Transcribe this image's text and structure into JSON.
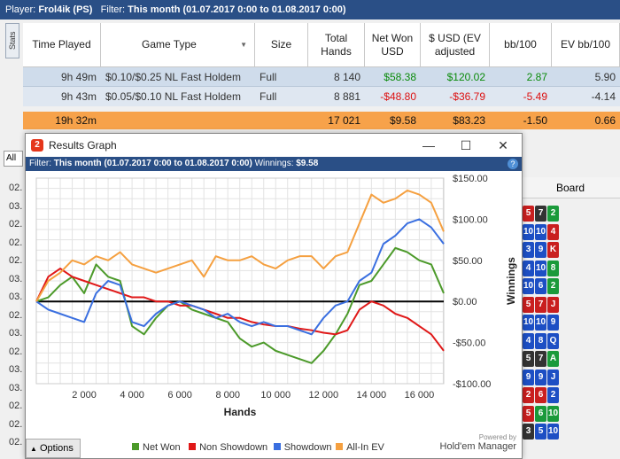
{
  "topbar": {
    "player_label": "Player:",
    "player": "Frol4ik (PS)",
    "filter_label": "Filter:",
    "filter": "This month (01.07.2017 0:00 to 01.08.2017 0:00)"
  },
  "stats_tab": "Stats",
  "table": {
    "headers": [
      "Time Played",
      "Game Type",
      "Size",
      "Total Hands",
      "Net Won USD",
      "$ USD (EV adjusted",
      "bb/100",
      "EV bb/100"
    ],
    "rows": [
      {
        "time": "9h 49m",
        "game": "$0.10/$0.25 NL Fast Holdem",
        "size": "Full",
        "hands": "8 140",
        "net": "$58.38",
        "ev": "$120.02",
        "bb": "2.87",
        "evbb": "5.90"
      },
      {
        "time": "9h 43m",
        "game": "$0.05/$0.10 NL Fast Holdem",
        "size": "Full",
        "hands": "8 881",
        "net": "-$48.80",
        "ev": "-$36.79",
        "bb": "-5.49",
        "evbb": "-4.14"
      }
    ],
    "total": {
      "time": "19h 32m",
      "hands": "17 021",
      "net": "$9.58",
      "ev": "$83.23",
      "bb": "-1.50",
      "evbb": "0.66"
    }
  },
  "all_label": "All",
  "board_header": "Board",
  "dates": [
    "02.",
    "03.",
    "02.",
    "02.",
    "02.",
    "03.",
    "03.",
    "02.",
    "03.",
    "02.",
    "03.",
    "03.",
    "02.",
    "02.",
    "02."
  ],
  "boards": [
    [
      [
        "5",
        "h"
      ],
      [
        "7",
        "s"
      ],
      [
        "2",
        "cl"
      ]
    ],
    [
      [
        "10",
        "d"
      ],
      [
        "10",
        "d"
      ],
      [
        "4",
        "h"
      ]
    ],
    [
      [
        "3",
        "d"
      ],
      [
        "9",
        "d"
      ],
      [
        "K",
        "h"
      ]
    ],
    [
      [
        "4",
        "d"
      ],
      [
        "10",
        "d"
      ],
      [
        "8",
        "cl"
      ]
    ],
    [
      [
        "10",
        "d"
      ],
      [
        "6",
        "d"
      ],
      [
        "2",
        "cl"
      ]
    ],
    [
      [
        "5",
        "h"
      ],
      [
        "7",
        "h"
      ],
      [
        "J",
        "h"
      ]
    ],
    [
      [
        "10",
        "d"
      ],
      [
        "10",
        "d"
      ],
      [
        "9",
        "d"
      ]
    ],
    [
      [
        "4",
        "d"
      ],
      [
        "8",
        "d"
      ],
      [
        "Q",
        "d"
      ]
    ],
    [
      [
        "5",
        "s"
      ],
      [
        "7",
        "s"
      ],
      [
        "A",
        "cl"
      ]
    ],
    [
      [
        "9",
        "d"
      ],
      [
        "9",
        "d"
      ],
      [
        "J",
        "d"
      ]
    ],
    [
      [
        "2",
        "h"
      ],
      [
        "6",
        "h"
      ],
      [
        "2",
        "d"
      ]
    ],
    [
      [
        "5",
        "h"
      ],
      [
        "6",
        "cl"
      ],
      [
        "10",
        "cl"
      ]
    ],
    [
      [
        "3",
        "s"
      ],
      [
        "5",
        "d"
      ],
      [
        "10",
        "d"
      ]
    ]
  ],
  "dialog": {
    "title": "Results Graph",
    "filter_label": "Filter:",
    "filter": "This month (01.07.2017 0:00 to 01.08.2017 0:00)",
    "winnings_label": "Winnings:",
    "winnings": "$9.58",
    "options": "Options",
    "brand_small": "Powered by",
    "brand": "Hold'em Manager"
  },
  "chart_data": {
    "type": "line",
    "xlabel": "Hands",
    "ylabel": "Winnings",
    "xlim": [
      0,
      17021
    ],
    "ylim": [
      -100,
      150
    ],
    "xticks": [
      2000,
      4000,
      6000,
      8000,
      10000,
      12000,
      14000,
      16000
    ],
    "xtick_labels": [
      "2 000",
      "4 000",
      "6 000",
      "8 000",
      "10 000",
      "12 000",
      "14 000",
      "16 000"
    ],
    "yticks": [
      -100,
      -50,
      0,
      50,
      100,
      150
    ],
    "ytick_labels": [
      "-$100.00",
      "-$50.00",
      "$0.00",
      "$50.00",
      "$100.00",
      "$150.00"
    ],
    "grid": true,
    "legend_position": "bottom",
    "x": [
      0,
      500,
      1000,
      1500,
      2000,
      2500,
      3000,
      3500,
      4000,
      4500,
      5000,
      5500,
      6000,
      6500,
      7000,
      7500,
      8000,
      8500,
      9000,
      9500,
      10000,
      10500,
      11000,
      11500,
      12000,
      12500,
      13000,
      13500,
      14000,
      14500,
      15000,
      15500,
      16000,
      16500,
      17021
    ],
    "series": [
      {
        "name": "Net Won",
        "color": "#4c9a2a",
        "values": [
          0,
          5,
          20,
          30,
          10,
          45,
          30,
          25,
          -30,
          -40,
          -20,
          -5,
          0,
          -10,
          -15,
          -20,
          -25,
          -45,
          -55,
          -50,
          -60,
          -65,
          -70,
          -75,
          -60,
          -40,
          -15,
          20,
          25,
          45,
          65,
          60,
          50,
          45,
          10
        ]
      },
      {
        "name": "Non Showdown",
        "color": "#e01818",
        "values": [
          0,
          30,
          40,
          30,
          25,
          20,
          15,
          10,
          5,
          5,
          0,
          0,
          -5,
          -5,
          -10,
          -15,
          -20,
          -20,
          -25,
          -28,
          -30,
          -30,
          -33,
          -35,
          -38,
          -40,
          -35,
          -10,
          0,
          -5,
          -15,
          -20,
          -30,
          -40,
          -60
        ]
      },
      {
        "name": "Showdown",
        "color": "#3a6fe0",
        "values": [
          0,
          -10,
          -15,
          -20,
          -25,
          10,
          25,
          20,
          -25,
          -30,
          -15,
          -5,
          0,
          -5,
          -10,
          -20,
          -15,
          -25,
          -30,
          -25,
          -30,
          -30,
          -35,
          -40,
          -20,
          -5,
          0,
          25,
          35,
          70,
          80,
          95,
          100,
          90,
          70
        ]
      },
      {
        "name": "All-In EV",
        "color": "#f5a040",
        "values": [
          0,
          25,
          35,
          50,
          45,
          55,
          50,
          60,
          45,
          40,
          35,
          40,
          45,
          50,
          30,
          55,
          50,
          50,
          55,
          45,
          40,
          50,
          55,
          55,
          40,
          55,
          60,
          95,
          130,
          120,
          125,
          135,
          130,
          120,
          85
        ]
      }
    ]
  }
}
